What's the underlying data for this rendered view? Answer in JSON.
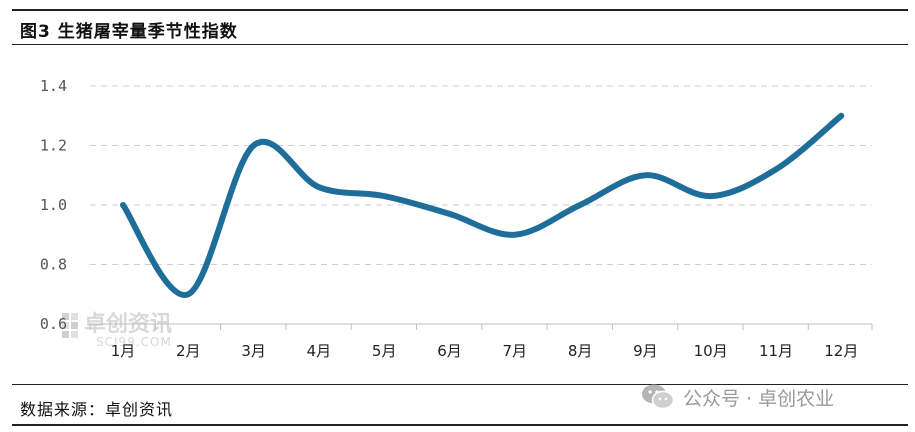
{
  "figure": {
    "title": "图3  生猪屠宰量季节性指数",
    "source": "数据来源：卓创资讯"
  },
  "watermark": {
    "brand": "卓创资讯",
    "site": "SCI99.COM",
    "wechat_label": "公众号 · 卓创农业",
    "icon": "wechat-icon"
  },
  "colors": {
    "series": "#1f6e99",
    "grid": "#cfcfcf",
    "axis": "#bfbfbf"
  },
  "chart_data": {
    "type": "line",
    "categories": [
      "1月",
      "2月",
      "3月",
      "4月",
      "5月",
      "6月",
      "7月",
      "8月",
      "9月",
      "10月",
      "11月",
      "12月"
    ],
    "series": [
      {
        "values": [
          1.0,
          0.7,
          1.2,
          1.06,
          1.03,
          0.97,
          0.9,
          1.0,
          1.1,
          1.03,
          1.12,
          1.3
        ]
      }
    ],
    "yticks": [
      "0.6",
      "0.8",
      "1.0",
      "1.2",
      "1.4"
    ],
    "ylim": [
      0.6,
      1.4
    ],
    "xlabel": "",
    "ylabel": "",
    "grid": "horizontal-dashed",
    "legend": "none"
  }
}
